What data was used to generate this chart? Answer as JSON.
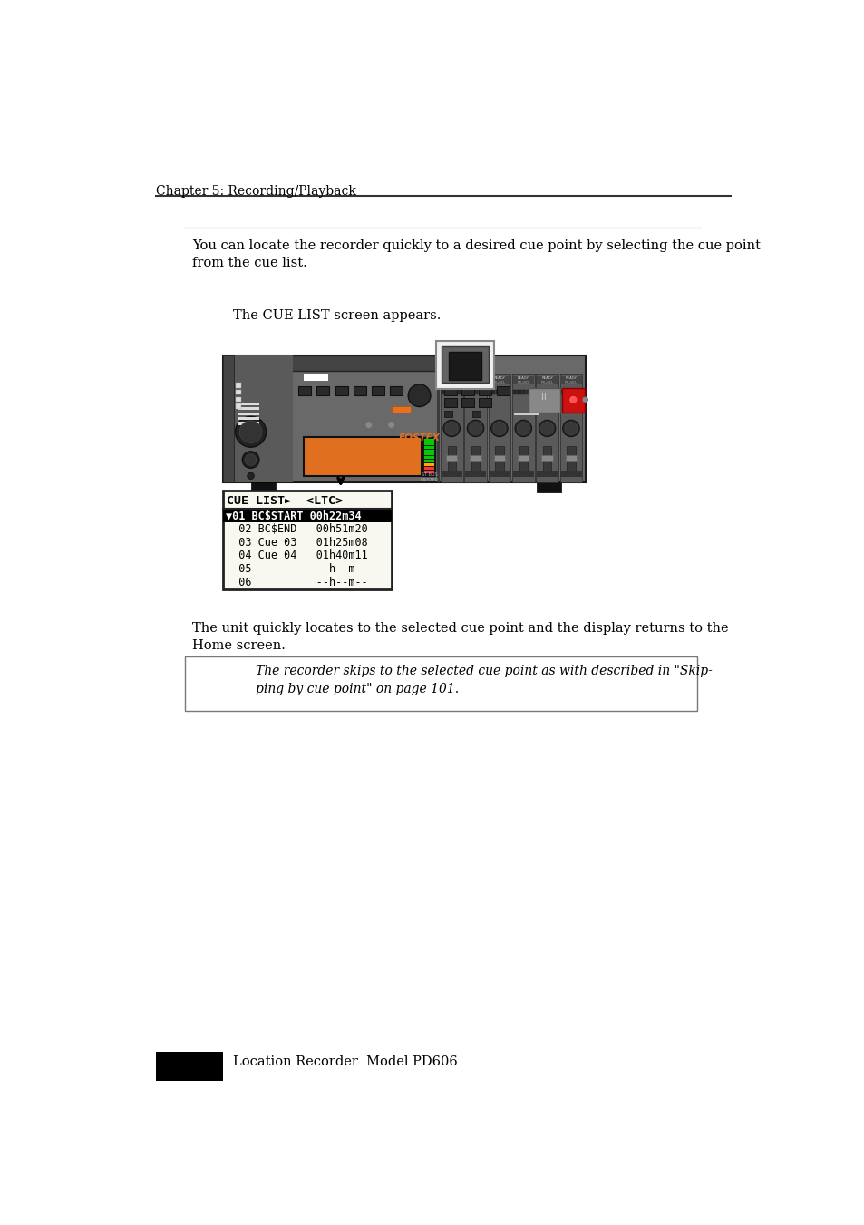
{
  "page_title": "Chapter 5: Recording/Playback",
  "footer_text": "Location Recorder  Model PD606",
  "para1": "You can locate the recorder quickly to a desired cue point by selecting the cue point\nfrom the cue list.",
  "para2": "The CUE LIST screen appears.",
  "para3": "The unit quickly locates to the selected cue point and the display returns to the\nHome screen.",
  "note_italic": "The recorder skips to the selected cue point as with described in \"Skip-\nping by cue point\" on page 101.",
  "cue_list_header": "CUE LIST►  <LTC>",
  "cue_list_rows": [
    {
      "num": "01",
      "name": "BC$START",
      "time": "00h22m34",
      "highlighted": true
    },
    {
      "num": "02",
      "name": "BC$END",
      "time": "00h51m20",
      "highlighted": false
    },
    {
      "num": "03",
      "name": "Cue 03",
      "time": "01h25m08",
      "highlighted": false
    },
    {
      "num": "04",
      "name": "Cue 04",
      "time": "01h40m11",
      "highlighted": false
    },
    {
      "num": "05",
      "name": "",
      "time": "--h--m--",
      "highlighted": false
    },
    {
      "num": "06",
      "name": "",
      "time": "--h--m--",
      "highlighted": false
    }
  ],
  "bg_color": "#ffffff",
  "device_body_color": "#696969",
  "device_dark": "#3a3a3a",
  "device_darker": "#222222",
  "device_mid": "#555555",
  "orange_display": "#e07020",
  "orange_accent": "#e87020",
  "red_button": "#cc1111",
  "gray_button": "#888888"
}
